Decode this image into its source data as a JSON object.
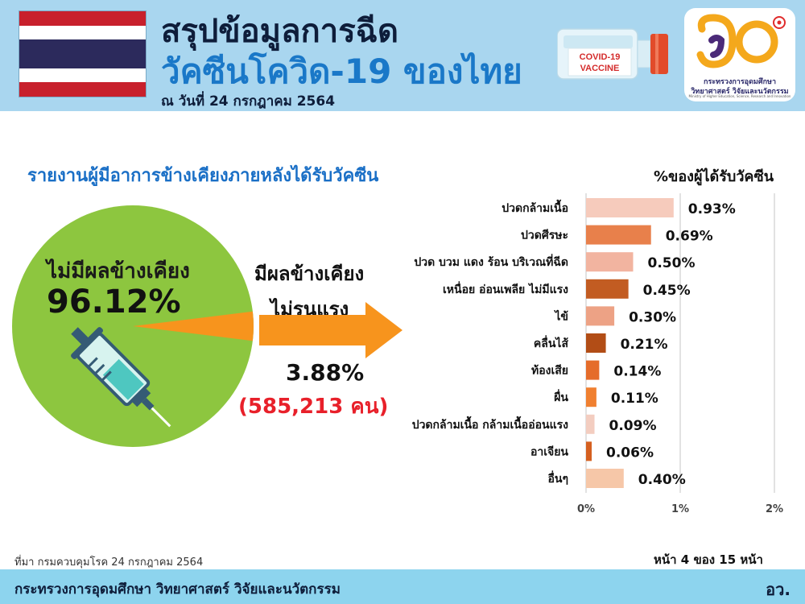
{
  "header": {
    "title_line1": "สรุปข้อมูลการฉีด",
    "title_line2": "วัคซีนโควิด-19 ของไทย",
    "date": "ณ วันที่ 24 กรกฎาคม 2564",
    "vaccine_box_line1": "COVID-19",
    "vaccine_box_line2": "VACCINE",
    "logo_text_line1": "กระทรวงการอุดมศึกษา",
    "logo_text_line2": "วิทยาศาสตร์ วิจัยและนวัตกรรม",
    "logo_text_line3": "Ministry of Higher Education, Science, Research and Innovation",
    "flag_colors": [
      "#c8202c",
      "#ffffff",
      "#2c2a5c",
      "#ffffff",
      "#c8202c"
    ],
    "logo_icon": "ministry-logo-icon",
    "vaccine_icon": "vaccine-vial-icon"
  },
  "report_heading": "รายงานผู้มีอาการข้างเคียงภายหลังได้รับวัคซีน",
  "pie": {
    "no_side_effect_label": "ไม่มีผลข้างเคียง",
    "no_side_effect_value": "96.12%",
    "mild_label_line1": "มีผลข้างเคียง",
    "mild_label_line2": "ไม่รุนแรง",
    "mild_value": "3.88%",
    "mild_count": "(585,213 คน)",
    "icon": "syringe-icon",
    "colors": {
      "no_side_effect": "#8dc63f",
      "mild": "#f7941d",
      "arrow": "#f7941d",
      "count_text": "#e8202a"
    }
  },
  "chart_data": [
    {
      "type": "pie",
      "categories": [
        "ไม่มีผลข้างเคียง",
        "มีผลข้างเคียง ไม่รุนแรง"
      ],
      "values": [
        96.12,
        3.88
      ],
      "colors": [
        "#8dc63f",
        "#f7941d"
      ]
    },
    {
      "type": "bar",
      "orientation": "horizontal",
      "title": "%ของผู้ได้รับวัคซีน",
      "categories": [
        "ปวดกล้ามเนื้อ",
        "ปวดศีรษะ",
        "ปวด บวม แดง ร้อน บริเวณที่ฉีด",
        "เหนื่อย อ่อนเพลีย ไม่มีแรง",
        "ไข้",
        "คลื่นไส้",
        "ท้องเสีย",
        "ผื่น",
        "ปวดกล้ามเนื้อ กล้ามเนื้ออ่อนแรง",
        "อาเจียน",
        "อื่นๆ"
      ],
      "values": [
        0.93,
        0.69,
        0.5,
        0.45,
        0.3,
        0.21,
        0.14,
        0.11,
        0.09,
        0.06,
        0.4
      ],
      "value_labels": [
        "0.93%",
        "0.69%",
        "0.50%",
        "0.45%",
        "0.30%",
        "0.21%",
        "0.14%",
        "0.11%",
        "0.09%",
        "0.06%",
        "0.40%"
      ],
      "bar_colors": [
        "#f6cbbc",
        "#e8804b",
        "#f2b4a0",
        "#c25c22",
        "#eda285",
        "#b24d16",
        "#e56c2a",
        "#f08030",
        "#f3cdc0",
        "#d56020",
        "#f6c7a8"
      ],
      "xticks": [
        0,
        1,
        2
      ],
      "xtick_labels": [
        "0%",
        "1%",
        "2%"
      ],
      "xlim": [
        0,
        2
      ],
      "grid": true
    }
  ],
  "footer": {
    "source": "ที่มา กรมควบคุมโรค 24 กรกฎาคม 2564",
    "page": "หน้า 4 ของ 15 หน้า",
    "ministry": "กระทรวงการอุดมศึกษา วิทยาศาสตร์ วิจัยและนวัตกรรม",
    "abbr": "อว."
  }
}
